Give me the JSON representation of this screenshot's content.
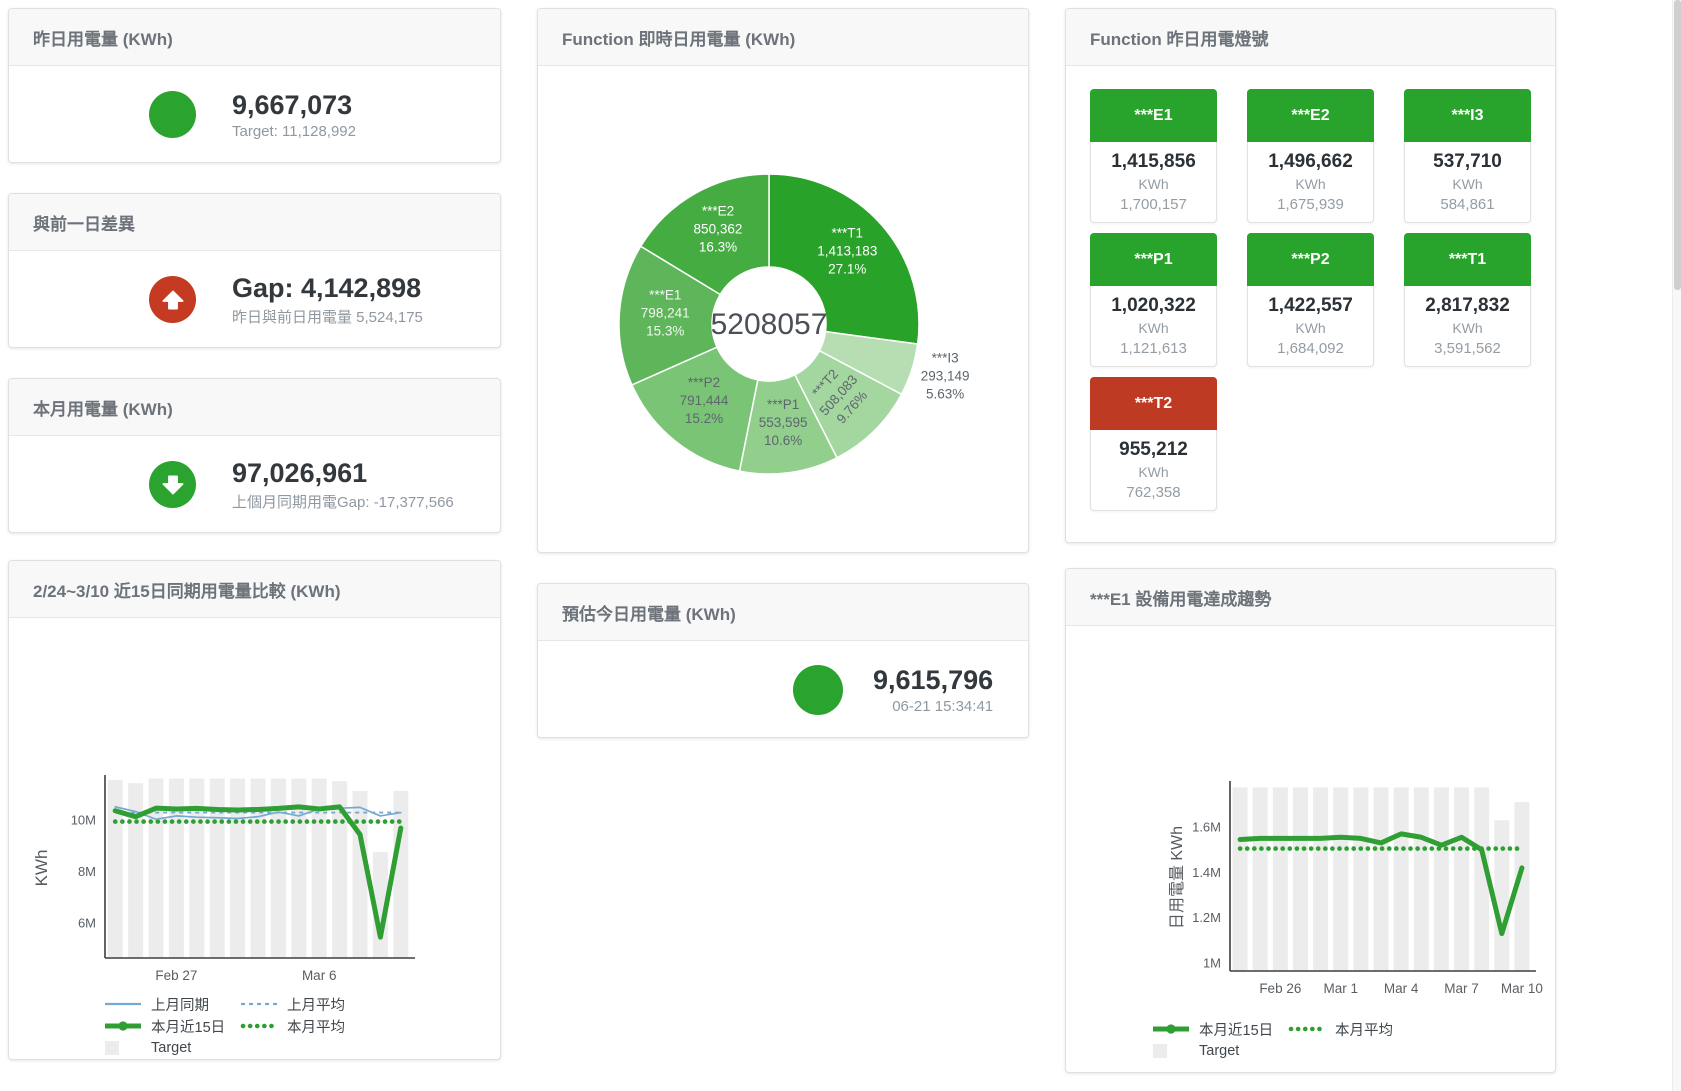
{
  "cards": {
    "yesterday": {
      "title": "昨日用電量 (KWh)",
      "value": "9,667,073",
      "subtitle": "Target: 11,128,992",
      "icon": "circle",
      "icon_color": "#2ba32f"
    },
    "day_gap": {
      "title": "與前一日差異",
      "value": "Gap: 4,142,898",
      "subtitle": "昨日與前日用電量 5,524,175",
      "icon": "arrow-up",
      "icon_color": "#c43a22"
    },
    "month": {
      "title": "本月用電量 (KWh)",
      "value": "97,026,961",
      "subtitle": "上個月同期用電Gap: -17,377,566",
      "icon": "arrow-down",
      "icon_color": "#2ba32f"
    },
    "realtime": {
      "title": "Function 即時日用電量 (KWh)"
    },
    "lights": {
      "title": "Function 昨日用電燈號"
    },
    "compare": {
      "title": "2/24~3/10 近15日同期用電量比較 (KWh)"
    },
    "estimate": {
      "title": "預估今日用電量 (KWh)",
      "value": "9,615,796",
      "subtitle": "06-21 15:34:41",
      "icon": "circle",
      "icon_color": "#2ba32f"
    },
    "trend": {
      "title": "***E1 設備用電達成趨勢"
    }
  },
  "lights": [
    {
      "label": "***E1",
      "value": "1,415,856",
      "unit": "KWh",
      "target": "1,700,157",
      "status": "green",
      "status_color": "#28a32b"
    },
    {
      "label": "***E2",
      "value": "1,496,662",
      "unit": "KWh",
      "target": "1,675,939",
      "status": "green",
      "status_color": "#28a32b"
    },
    {
      "label": "***I3",
      "value": "537,710",
      "unit": "KWh",
      "target": "584,861",
      "status": "green",
      "status_color": "#28a32b"
    },
    {
      "label": "***P1",
      "value": "1,020,322",
      "unit": "KWh",
      "target": "1,121,613",
      "status": "green",
      "status_color": "#28a32b"
    },
    {
      "label": "***P2",
      "value": "1,422,557",
      "unit": "KWh",
      "target": "1,684,092",
      "status": "green",
      "status_color": "#28a32b"
    },
    {
      "label": "***T1",
      "value": "2,817,832",
      "unit": "KWh",
      "target": "3,591,562",
      "status": "green",
      "status_color": "#28a32b"
    },
    {
      "label": "***T2",
      "value": "955,212",
      "unit": "KWh",
      "target": "762,358",
      "status": "red",
      "status_color": "#bf3a23"
    }
  ],
  "chart_data": [
    {
      "type": "pie",
      "title": "Function 即時日用電量 (KWh)",
      "center_total": "5208057",
      "slices": [
        {
          "name": "***T1",
          "value": 1413183,
          "label": "1,413,183",
          "pct": "27.1%",
          "color": "#28a228",
          "text": "#ffffff"
        },
        {
          "name": "***I3",
          "value": 293149,
          "label": "293,149",
          "pct": "5.63%",
          "color": "#b7deb3",
          "text": "#5d666d",
          "outside": true
        },
        {
          "name": "***T2",
          "value": 508083,
          "label": "508,083",
          "pct": "9.76%",
          "color": "#a4d69f",
          "text": "#5d666d",
          "rotate": -48
        },
        {
          "name": "***P1",
          "value": 553595,
          "label": "553,595",
          "pct": "10.6%",
          "color": "#92cf8d",
          "text": "#5d666d"
        },
        {
          "name": "***P2",
          "value": 791444,
          "label": "791,444",
          "pct": "15.2%",
          "color": "#7ac476",
          "text": "#5d666d"
        },
        {
          "name": "***E1",
          "value": 798241,
          "label": "798,241",
          "pct": "15.3%",
          "color": "#5fb65a",
          "text": "#f2f7f1"
        },
        {
          "name": "***E2",
          "value": 850362,
          "label": "850,362",
          "pct": "16.3%",
          "color": "#45ac42",
          "text": "#ffffff"
        }
      ]
    },
    {
      "type": "line",
      "title": "2/24~3/10 近15日同期用電量比較 (KWh)",
      "ylabel": "KWh",
      "yrange": [
        4.64,
        11.62
      ],
      "yticks": [
        {
          "v": 6,
          "label": "6M"
        },
        {
          "v": 8,
          "label": "8M"
        },
        {
          "v": 10,
          "label": "10M"
        }
      ],
      "categories": [
        "Feb 24",
        "Feb 25",
        "Feb 26",
        "Feb 27",
        "Feb 28",
        "Mar 1",
        "Mar 2",
        "Mar 3",
        "Mar 4",
        "Mar 5",
        "Mar 6",
        "Mar 7",
        "Mar 8",
        "Mar 9",
        "Mar 10"
      ],
      "xticks": [
        {
          "i": 3,
          "label": "Feb 27"
        },
        {
          "i": 10,
          "label": "Mar 6"
        }
      ],
      "unit": "M KWh",
      "target": {
        "name": "Target",
        "color": "#ececec",
        "values": [
          11.55,
          11.42,
          11.6,
          11.6,
          11.6,
          11.6,
          11.6,
          11.6,
          11.6,
          11.6,
          11.6,
          11.5,
          11.12,
          8.75,
          11.12
        ]
      },
      "series": [
        {
          "name": "上月同期",
          "color": "#74aad2",
          "width": 1.7,
          "values": [
            10.5,
            10.32,
            10.02,
            10.15,
            10.1,
            10.08,
            10.05,
            10.12,
            10.3,
            10.15,
            10.42,
            10.45,
            10.48,
            10.15,
            10.28
          ]
        },
        {
          "name": "本月近15日",
          "color": "#2f9e33",
          "width": 5,
          "values": [
            10.35,
            10.12,
            10.45,
            10.42,
            10.44,
            10.4,
            10.38,
            10.4,
            10.44,
            10.5,
            10.42,
            10.5,
            9.43,
            5.45,
            9.68
          ]
        }
      ],
      "avg_lines": [
        {
          "name": "上月平均",
          "color": "#74aad2",
          "value": 10.28,
          "style": "dash"
        },
        {
          "name": "本月平均",
          "color": "#2f9e33",
          "value": 9.93,
          "style": "dot"
        }
      ]
    },
    {
      "type": "line",
      "title": "***E1 設備用電達成趨勢",
      "ylabel": "日用電量 KWh",
      "yrange": [
        0.965,
        1.79
      ],
      "yticks": [
        {
          "v": 1,
          "label": "1M"
        },
        {
          "v": 1.2,
          "label": "1.2M"
        },
        {
          "v": 1.4,
          "label": "1.4M"
        },
        {
          "v": 1.6,
          "label": "1.6M"
        }
      ],
      "categories": [
        "Feb 24",
        "Feb 25",
        "Feb 26",
        "Feb 27",
        "Feb 28",
        "Mar 1",
        "Mar 2",
        "Mar 3",
        "Mar 4",
        "Mar 5",
        "Mar 6",
        "Mar 7",
        "Mar 8",
        "Mar 9",
        "Mar 10"
      ],
      "xticks": [
        {
          "i": 2,
          "label": "Feb 26"
        },
        {
          "i": 5,
          "label": "Mar 1"
        },
        {
          "i": 8,
          "label": "Mar 4"
        },
        {
          "i": 11,
          "label": "Mar 7"
        },
        {
          "i": 14,
          "label": "Mar 10"
        }
      ],
      "unit": "M KWh",
      "target": {
        "name": "Target",
        "color": "#ececec",
        "values": [
          1.775,
          1.775,
          1.775,
          1.775,
          1.775,
          1.775,
          1.775,
          1.775,
          1.775,
          1.775,
          1.775,
          1.775,
          1.775,
          1.63,
          1.71
        ]
      },
      "series": [
        {
          "name": "本月近15日",
          "color": "#2f9e33",
          "width": 5,
          "values": [
            1.545,
            1.55,
            1.55,
            1.55,
            1.55,
            1.555,
            1.55,
            1.53,
            1.57,
            1.555,
            1.52,
            1.555,
            1.5,
            1.13,
            1.42
          ]
        }
      ],
      "avg_lines": [
        {
          "name": "本月平均",
          "color": "#2f9e33",
          "value": 1.505,
          "style": "dot"
        }
      ]
    }
  ]
}
